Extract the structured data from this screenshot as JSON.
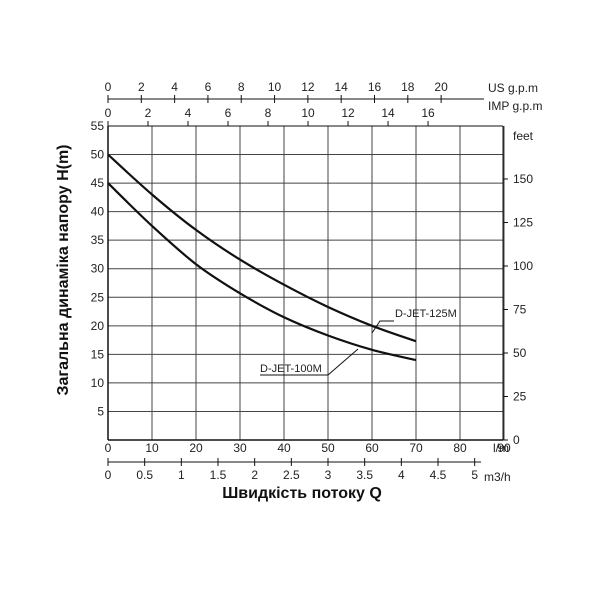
{
  "chart_data": {
    "type": "line",
    "ylabel": "Загальна динаміка напору H(m)",
    "xlabel": "Швидкість потоку Q",
    "ylim": [
      0,
      55
    ],
    "y_ticks": [
      0,
      5,
      10,
      15,
      20,
      25,
      30,
      35,
      40,
      45,
      50,
      55
    ],
    "y_right": {
      "unit": "feet",
      "ticks": [
        0,
        25,
        50,
        75,
        100,
        125,
        150
      ]
    },
    "x_axes": {
      "us_gpm": {
        "unit": "US g.p.m",
        "ticks": [
          0,
          2,
          4,
          6,
          8,
          10,
          12,
          14,
          16,
          18,
          20
        ]
      },
      "imp_gpm": {
        "unit": "IMP g.p.m",
        "ticks": [
          0,
          2,
          4,
          6,
          8,
          10,
          12,
          14,
          16
        ]
      },
      "l_min": {
        "unit": "l/m",
        "ticks": [
          0,
          10,
          20,
          30,
          40,
          50,
          60,
          70,
          80,
          90
        ]
      },
      "m3_h": {
        "unit": "m3/h",
        "ticks": [
          "0",
          "0.5",
          "1",
          "1.5",
          "2",
          "2.5",
          "3",
          "3.5",
          "4",
          "4.5",
          "5"
        ]
      }
    },
    "xlim_l_min": [
      0,
      90
    ],
    "grid": true,
    "series": [
      {
        "name": "D-JET-125M",
        "x": [
          0,
          10,
          20,
          30,
          40,
          50,
          60,
          70
        ],
        "y": [
          50,
          43,
          36.8,
          31.6,
          27.2,
          23.3,
          20.0,
          17.3
        ]
      },
      {
        "name": "D-JET-100M",
        "x": [
          0,
          10,
          20,
          30,
          40,
          50,
          60,
          70
        ],
        "y": [
          45,
          37.5,
          30.8,
          25.7,
          21.5,
          18.3,
          15.8,
          14.0
        ]
      }
    ],
    "colors": {
      "line": "#111111",
      "grid": "#444444"
    }
  }
}
